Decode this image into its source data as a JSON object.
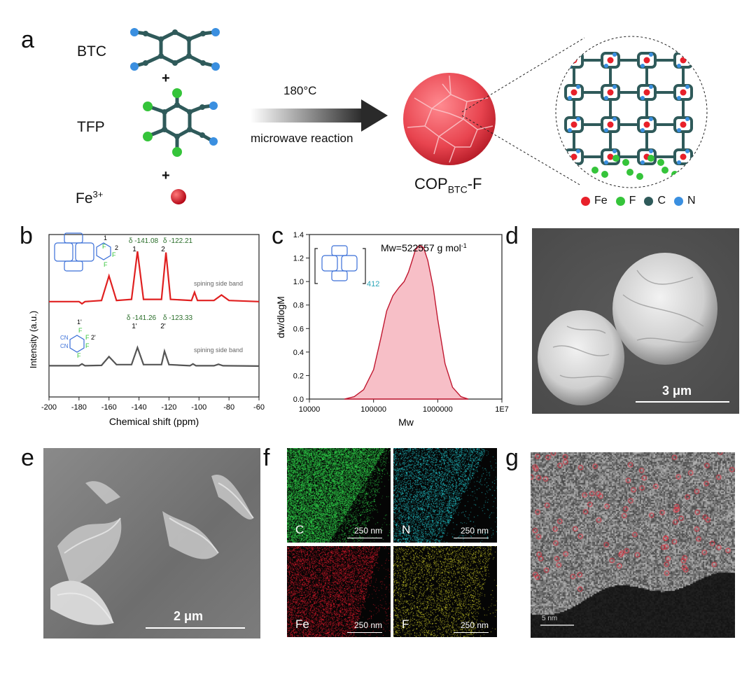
{
  "panel_a": {
    "letter": "a",
    "reactants": [
      "BTC",
      "TFP"
    ],
    "plus": "+",
    "metal_base": "Fe",
    "metal_sup": "3+",
    "arrow_top": "180°C",
    "arrow_bottom": "microwave reaction",
    "product_base": "COP",
    "product_sub": "BTC",
    "product_suffix": "-F",
    "legend": [
      "Fe",
      "F",
      "C",
      "N"
    ],
    "colors": {
      "Fe": "#e8202a",
      "F": "#35c43a",
      "C": "#2f5a5a",
      "N": "#3a8fe0",
      "flower": "#e8444f"
    }
  },
  "panel_b": {
    "letter": "b",
    "ylabel": "Intensity (a.u.)",
    "xlabel": "Chemical shift (ppm)",
    "ticks": [
      "-200",
      "-180",
      "-160",
      "-140",
      "-120",
      "-100",
      "-80",
      "-60"
    ],
    "top_peaks": [
      {
        "delta": "δ -141.08",
        "label": "1"
      },
      {
        "delta": "δ -122.21",
        "label": "2"
      }
    ],
    "bottom_peaks": [
      {
        "delta": "δ -141.26",
        "label": "1'"
      },
      {
        "delta": "δ -123.33",
        "label": "2'"
      }
    ],
    "sideband_label": "spining side band",
    "struct_top_labels": [
      "1",
      "F",
      "2",
      "F",
      "F"
    ],
    "struct_bottom_labels": [
      "1'",
      "F",
      "CN",
      "F",
      "2'",
      "CN",
      "F",
      "F"
    ]
  },
  "panel_c": {
    "letter": "c",
    "ylabel": "dw/dlogM",
    "xlabel": "Mw",
    "mw_label": "Mw=522557 g mol",
    "mw_sup": "-1",
    "repeat_label": "412",
    "yticks": [
      "0.0",
      "0.2",
      "0.4",
      "0.6",
      "0.8",
      "1.0",
      "1.2",
      "1.4"
    ],
    "xticks": [
      "10000",
      "100000",
      "1000000",
      "1E7"
    ]
  },
  "panel_d": {
    "letter": "d",
    "scale": "3 μm"
  },
  "panel_e": {
    "letter": "e",
    "scale": "2 μm"
  },
  "panel_f": {
    "letter": "f",
    "maps": [
      {
        "element": "C",
        "scale": "250 nm",
        "color": "#2fd64a"
      },
      {
        "element": "N",
        "scale": "250 nm",
        "color": "#22c9d0"
      },
      {
        "element": "Fe",
        "scale": "250 nm",
        "color": "#d8182a"
      },
      {
        "element": "F",
        "scale": "250 nm",
        "color": "#d8d62a"
      }
    ]
  },
  "panel_g": {
    "letter": "g",
    "scale": "5 nm"
  },
  "chart_data": [
    {
      "type": "line",
      "xlabel": "Chemical shift (ppm)",
      "ylabel": "Intensity (a.u.)",
      "xlim": [
        -200,
        -60
      ],
      "series": [
        {
          "x": [
            -200,
            -180,
            -178,
            -176,
            -165,
            -160,
            -155,
            -145,
            -141,
            -137,
            -125,
            -122,
            -119,
            -105,
            -103,
            -101,
            -90,
            -85,
            -80,
            -60
          ],
          "y": [
            0.08,
            0.08,
            0.04,
            0.08,
            0.1,
            0.55,
            0.1,
            0.12,
            1.0,
            0.12,
            0.12,
            0.98,
            0.12,
            0.1,
            0.25,
            0.1,
            0.1,
            0.2,
            0.1,
            0.08
          ]
        },
        {
          "x": [
            -200,
            -180,
            -178,
            -176,
            -165,
            -160,
            -155,
            -145,
            -141,
            -137,
            -125,
            -123,
            -120,
            -106,
            -104,
            -102,
            -90,
            -87,
            -84,
            -60
          ],
          "y": [
            0.05,
            0.05,
            0.1,
            0.05,
            0.06,
            0.3,
            0.08,
            0.08,
            0.55,
            0.08,
            0.08,
            0.45,
            0.08,
            0.05,
            0.1,
            0.05,
            0.05,
            0.09,
            0.05,
            0.04
          ]
        }
      ]
    },
    {
      "type": "area",
      "xlabel": "Mw",
      "ylabel": "dw/dlogM",
      "xscale": "log",
      "xlim": [
        10000,
        10000000
      ],
      "ylim": [
        0,
        1.4
      ],
      "series": [
        {
          "x": [
            35000,
            50000,
            70000,
            100000,
            130000,
            160000,
            200000,
            250000,
            300000,
            350000,
            400000,
            450000,
            520000,
            600000,
            700000,
            850000,
            1000000,
            1300000,
            1700000,
            2300000,
            3000000
          ],
          "y": [
            0.0,
            0.02,
            0.08,
            0.25,
            0.52,
            0.75,
            0.88,
            0.95,
            1.0,
            1.08,
            1.18,
            1.27,
            1.31,
            1.29,
            1.18,
            0.95,
            0.68,
            0.3,
            0.1,
            0.02,
            0.0
          ]
        }
      ]
    }
  ]
}
